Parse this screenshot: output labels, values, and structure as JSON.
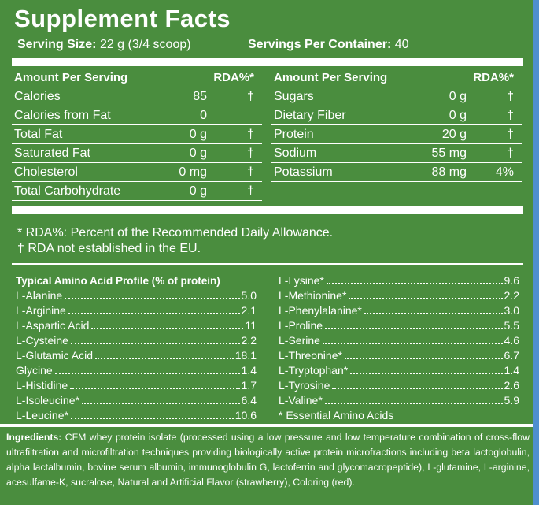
{
  "title": "Supplement Facts",
  "serving": {
    "size_label": "Serving Size:",
    "size_value": "22 g (3/4 scoop)",
    "container_label": "Servings Per Container:",
    "container_value": "40"
  },
  "nutrients": {
    "left": {
      "header": [
        "Amount Per Serving",
        "RDA%*"
      ],
      "rows": [
        [
          "Calories",
          "85",
          "†"
        ],
        [
          "Calories from Fat",
          "0"
        ],
        [
          "Total Fat",
          "0 g",
          "†"
        ],
        [
          "Saturated Fat",
          "0 g",
          "†"
        ],
        [
          "Cholesterol",
          "0 mg",
          "†"
        ],
        [
          "Total Carbohydrate",
          "0 g",
          "†"
        ]
      ]
    },
    "right": {
      "header": [
        "Amount Per Serving",
        "RDA%*"
      ],
      "rows": [
        [
          "Sugars",
          "0 g",
          "†"
        ],
        [
          "Dietary Fiber",
          "0 g",
          "†"
        ],
        [
          "Protein",
          "20 g",
          "†"
        ],
        [
          "Sodium",
          "55 mg",
          "†"
        ],
        [
          "Potassium",
          "88 mg",
          "4%"
        ]
      ]
    }
  },
  "footnotes": [
    "* RDA%: Percent of the Recommended Daily Allowance.",
    "† RDA not established in the EU."
  ],
  "amino": {
    "title": "Typical Amino Acid Profile (% of protein)",
    "left": [
      [
        "L-Alanine",
        "5.0"
      ],
      [
        "L-Arginine",
        "2.1"
      ],
      [
        "L-Aspartic Acid",
        "11"
      ],
      [
        "L-Cysteine",
        "2.2"
      ],
      [
        "L-Glutamic Acid",
        "18.1"
      ],
      [
        "Glycine",
        "1.4"
      ],
      [
        "L-Histidine",
        "1.7"
      ],
      [
        "L-Isoleucine*",
        "6.4"
      ],
      [
        "L-Leucine*",
        "10.6"
      ]
    ],
    "right": [
      [
        "L-Lysine*",
        "9.6"
      ],
      [
        "L-Methionine*",
        "2.2"
      ],
      [
        "L-Phenylalanine*",
        "3.0"
      ],
      [
        "L-Proline",
        "5.5"
      ],
      [
        "L-Serine",
        "4.6"
      ],
      [
        "L-Threonine*",
        "6.7"
      ],
      [
        "L-Tryptophan*",
        "1.4"
      ],
      [
        "L-Tyrosine",
        "2.6"
      ],
      [
        "L-Valine*",
        "5.9"
      ]
    ],
    "note": "* Essential Amino Acids"
  },
  "ingredients": {
    "label": "Ingredients:",
    "text": "CFM whey protein isolate (processed using a low pressure and low temperature combination of cross-flow ultrafiltration and microfiltration techniques providing biologically active protein microfractions including beta lactoglobulin, alpha lactalbumin, bovine serum albumin, immunoglobulin G, lactoferrin and glycomacropeptide), L-glutamine, L-arginine, acesulfame-K, sucralose, Natural and Artificial Flavor (strawberry), Coloring (red)."
  }
}
